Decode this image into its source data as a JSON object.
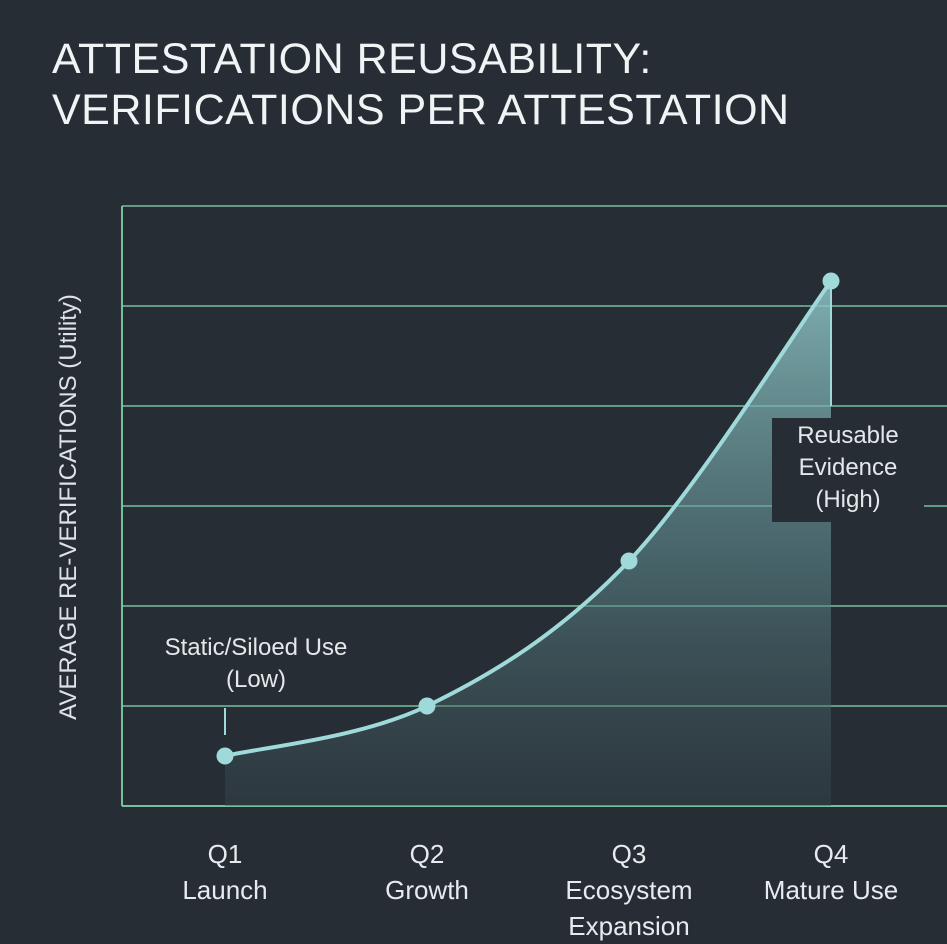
{
  "chart_data": {
    "type": "area",
    "title_lines": [
      "ATTESTATION REUSABILITY:",
      "VERIFICATIONS PER ATTESTATION"
    ],
    "ylabel": "AVERAGE RE-VERIFICATIONS (Utility)",
    "xlabel": "",
    "categories": [
      {
        "q": "Q1",
        "name": "Launch"
      },
      {
        "q": "Q2",
        "name": "Growth"
      },
      {
        "q": "Q3",
        "name": "Ecosystem Expansion"
      },
      {
        "q": "Q4",
        "name": "Mature Use"
      }
    ],
    "values": [
      0.5,
      1.0,
      2.45,
      5.25
    ],
    "ylim": [
      0,
      6
    ],
    "y_ticks_labeled": false,
    "grid": "horizontal",
    "annotations": [
      {
        "lines": [
          "Static/Siloed Use",
          "(Low)"
        ],
        "category": "Q1"
      },
      {
        "lines": [
          "Reusable",
          "Evidence",
          "(High)"
        ],
        "category": "Q4"
      }
    ],
    "colors": {
      "background": "#262d34",
      "line": "#9fd9da",
      "grid": "#7fcfa8",
      "fill_top": "#8fc6c7"
    }
  }
}
